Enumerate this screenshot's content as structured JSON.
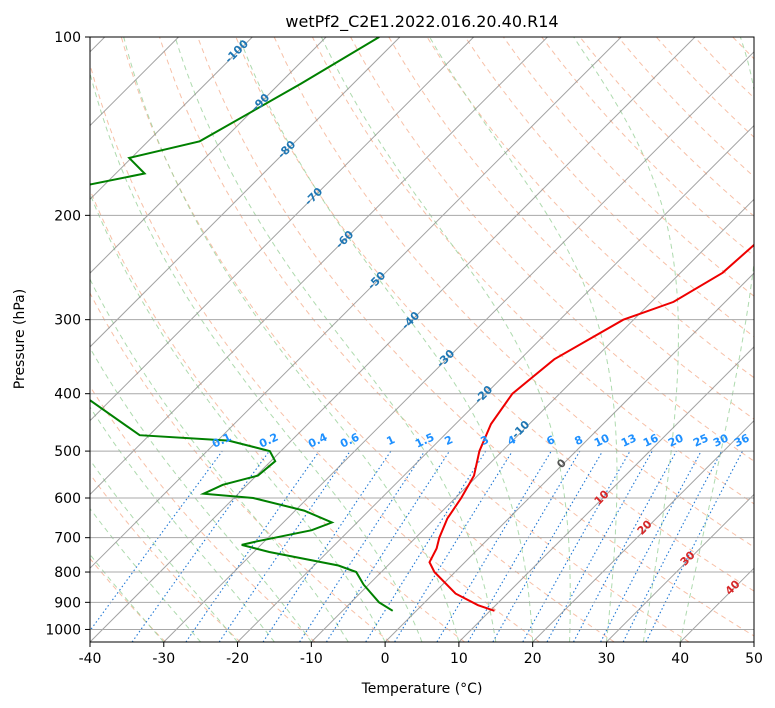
{
  "chart_data": {
    "type": "line",
    "title": "wetPf2_C2E1.2022.016.20.40.R14",
    "xlabel": "Temperature (°C)",
    "ylabel": "Pressure (hPa)",
    "xlim": [
      -40,
      50
    ],
    "ylim": [
      1050,
      100
    ],
    "y_scale": "log",
    "grid": true,
    "x_ticks": [
      "-40",
      "-30",
      "-20",
      "-10",
      "0",
      "10",
      "20",
      "30",
      "40",
      "50"
    ],
    "y_ticks": [
      "100",
      "200",
      "300",
      "400",
      "500",
      "600",
      "700",
      "800",
      "900",
      "1000"
    ],
    "series": [
      {
        "color": "#ee0000",
        "points": [
          [
            -6.4,
            100
          ],
          [
            -4.9,
            120
          ],
          [
            -3.8,
            150
          ],
          [
            -3.3,
            200
          ],
          [
            -4.3,
            250
          ],
          [
            -7.0,
            280
          ],
          [
            -11.4,
            300
          ],
          [
            -15.4,
            350
          ],
          [
            -16.4,
            400
          ],
          [
            -15.2,
            450
          ],
          [
            -13.1,
            500
          ],
          [
            -10.5,
            550
          ],
          [
            -9.2,
            600
          ],
          [
            -8.3,
            650
          ],
          [
            -6.8,
            700
          ],
          [
            -5.7,
            730
          ],
          [
            -4.8,
            770
          ],
          [
            -2.8,
            800
          ],
          [
            3.0,
            870
          ],
          [
            7.6,
            910
          ],
          [
            10.6,
            930
          ]
        ]
      },
      {
        "color": "#008000",
        "points": [
          [
            -82.8,
            100
          ],
          [
            -87.1,
            120
          ],
          [
            -93.0,
            150
          ],
          [
            -100.3,
            160
          ],
          [
            -96.1,
            170
          ],
          [
            -104.0,
            180
          ],
          [
            -109.6,
            200
          ],
          [
            -102.1,
            205
          ],
          [
            -99.2,
            215
          ],
          [
            -98.4,
            220
          ],
          [
            -97.5,
            230
          ],
          [
            -103.5,
            245
          ],
          [
            -114.6,
            250
          ],
          [
            -61.3,
            470
          ],
          [
            -48.5,
            480
          ],
          [
            -41.5,
            500
          ],
          [
            -39.4,
            520
          ],
          [
            -39.8,
            550
          ],
          [
            -43.3,
            570
          ],
          [
            -44.7,
            590
          ],
          [
            -37.4,
            600
          ],
          [
            -28.8,
            630
          ],
          [
            -23.4,
            660
          ],
          [
            -25.1,
            680
          ],
          [
            -31.0,
            710
          ],
          [
            -32.6,
            720
          ],
          [
            -27.9,
            740
          ],
          [
            -16.7,
            780
          ],
          [
            -13.4,
            800
          ],
          [
            -10.7,
            840
          ],
          [
            -6.2,
            900
          ],
          [
            -3.2,
            930
          ]
        ]
      }
    ],
    "dry_adiabat_labels": [
      "-100",
      "-90",
      "-80",
      "-70",
      "-60",
      "-50",
      "-40",
      "-30",
      "-20",
      "-10",
      "0",
      "10",
      "20",
      "30",
      "40"
    ],
    "mixing_ratio_labels": [
      "0.1",
      "0.2",
      "0.4",
      "0.6",
      "1",
      "1.5",
      "2",
      "3",
      "4",
      "6",
      "8",
      "10",
      "13",
      "16",
      "20",
      "25",
      "30",
      "36"
    ]
  }
}
